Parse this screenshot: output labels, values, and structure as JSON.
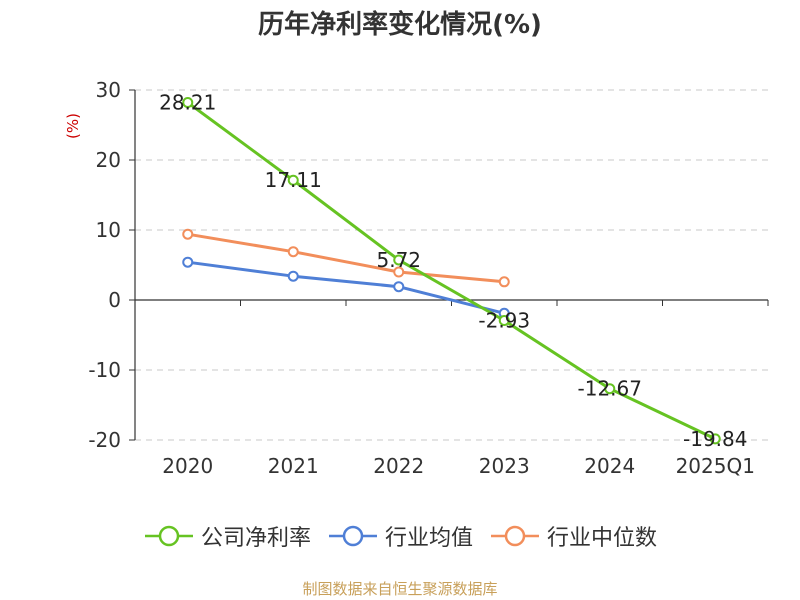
{
  "chart_title": "历年净利率变化情况(%)",
  "source": "制图数据来自恒生聚源数据库",
  "colors": {
    "grid": "#c8c8c8",
    "axis": "#333333",
    "text": "#333333",
    "unit": "#cc0000"
  },
  "chart_data": {
    "type": "line",
    "title": "历年净利率变化情况(%)",
    "y_unit_label": "(%)",
    "categories": [
      "2020",
      "2021",
      "2022",
      "2023",
      "2024",
      "2025Q1"
    ],
    "y_ticks": [
      "30",
      "20",
      "10",
      "0",
      "-10",
      "-20"
    ],
    "ylim": [
      -20,
      30
    ],
    "grid": true,
    "legend_position": "bottom",
    "series": [
      {
        "name": "公司净利率",
        "color": "#66c322",
        "values": [
          28.21,
          17.11,
          5.72,
          -2.93,
          -12.67,
          -19.84
        ],
        "labels": [
          "28.21",
          "17.11",
          "5.72",
          "-2.93",
          "-12.67",
          "-19.84"
        ]
      },
      {
        "name": "行业均值",
        "color": "#4f7fd6",
        "values": [
          5.4,
          3.4,
          1.9,
          -1.9,
          null,
          null
        ]
      },
      {
        "name": "行业中位数",
        "color": "#f28e5b",
        "values": [
          9.4,
          6.9,
          4.0,
          2.6,
          null,
          null
        ]
      }
    ]
  }
}
